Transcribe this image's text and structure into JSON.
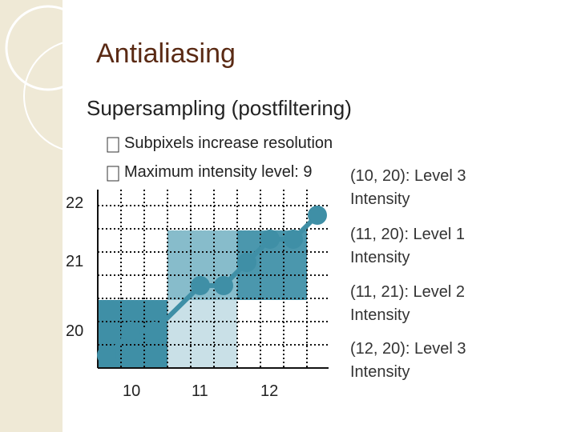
{
  "header": {
    "title": "Antialiasing",
    "subtitle": "Supersampling (postfiltering)"
  },
  "bullets": [
    "Subpixels increase resolution",
    "Maximum intensity level: 9"
  ],
  "figure": {
    "row_labels": [
      "22",
      "21",
      "20"
    ],
    "column_labels": [
      "10",
      "11",
      "12"
    ]
  },
  "annotations": [
    {
      "line1": "(10, 20): Level 3",
      "line2": "Intensity"
    },
    {
      "line1": "(11, 20): Level 1",
      "line2": "Intensity"
    },
    {
      "line1": "(11, 21): Level 2",
      "line2": "Intensity"
    },
    {
      "line1": "(12, 20): Level 3",
      "line2": "Intensity"
    }
  ]
}
